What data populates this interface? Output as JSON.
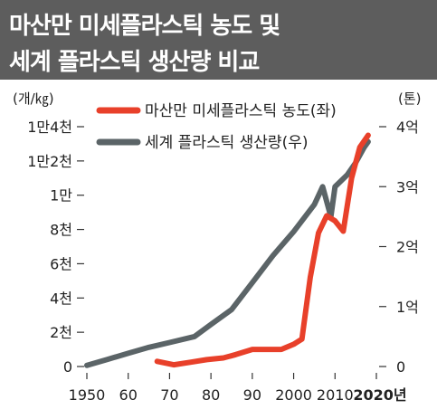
{
  "header": {
    "title_line1": "마산만 미세플라스틱 농도 및",
    "title_line2": "세계 플라스틱 생산량 비교"
  },
  "chart_data": {
    "type": "line",
    "y_left": {
      "unit": "(개/㎏)",
      "range": [
        0,
        14000
      ],
      "ticks": [
        0,
        2000,
        4000,
        6000,
        8000,
        10000,
        12000,
        14000
      ],
      "tick_labels": [
        "0",
        "2천",
        "4천",
        "6천",
        "8천",
        "1만",
        "1만2천",
        "1만4천"
      ]
    },
    "y_right": {
      "unit": "(톤)",
      "range": [
        0,
        4
      ],
      "ticks": [
        0,
        1,
        2,
        3,
        4
      ],
      "tick_labels": [
        "0",
        "1억",
        "2억",
        "3억",
        "4억"
      ]
    },
    "x_axis": {
      "range": [
        1950,
        2020
      ],
      "ticks": [
        1950,
        1960,
        1970,
        1980,
        1990,
        2000,
        2010,
        2020
      ],
      "tick_labels": [
        "1950",
        "60",
        "70",
        "80",
        "90",
        "2000",
        "2010",
        "2020년"
      ]
    },
    "series": [
      {
        "name": "마산만 미세플라스틱 농도(좌)",
        "axis": "left",
        "color": "#e8402a",
        "points": [
          [
            1967,
            300
          ],
          [
            1971,
            100
          ],
          [
            1975,
            250
          ],
          [
            1979,
            400
          ],
          [
            1983,
            500
          ],
          [
            1986,
            700
          ],
          [
            1990,
            1000
          ],
          [
            1993,
            1000
          ],
          [
            1997,
            1000
          ],
          [
            2000,
            1300
          ],
          [
            2002,
            1600
          ],
          [
            2004,
            5200
          ],
          [
            2006,
            7800
          ],
          [
            2008,
            8800
          ],
          [
            2010,
            8500
          ],
          [
            2012,
            7900
          ],
          [
            2014,
            11000
          ],
          [
            2016,
            12800
          ],
          [
            2018,
            13500
          ]
        ]
      },
      {
        "name": "세계 플라스틱 생산량(우)",
        "axis": "right",
        "color": "#5b6467",
        "points": [
          [
            1950,
            0.02
          ],
          [
            1955,
            0.12
          ],
          [
            1960,
            0.22
          ],
          [
            1965,
            0.32
          ],
          [
            1970,
            0.4
          ],
          [
            1976,
            0.5
          ],
          [
            1980,
            0.7
          ],
          [
            1985,
            0.95
          ],
          [
            1990,
            1.4
          ],
          [
            1995,
            1.85
          ],
          [
            2000,
            2.25
          ],
          [
            2005,
            2.7
          ],
          [
            2007,
            3.0
          ],
          [
            2009,
            2.5
          ],
          [
            2010,
            3.0
          ],
          [
            2013,
            3.2
          ],
          [
            2015,
            3.4
          ],
          [
            2017,
            3.65
          ],
          [
            2018,
            3.75
          ]
        ]
      }
    ],
    "legend": "top-center",
    "grid": false
  }
}
